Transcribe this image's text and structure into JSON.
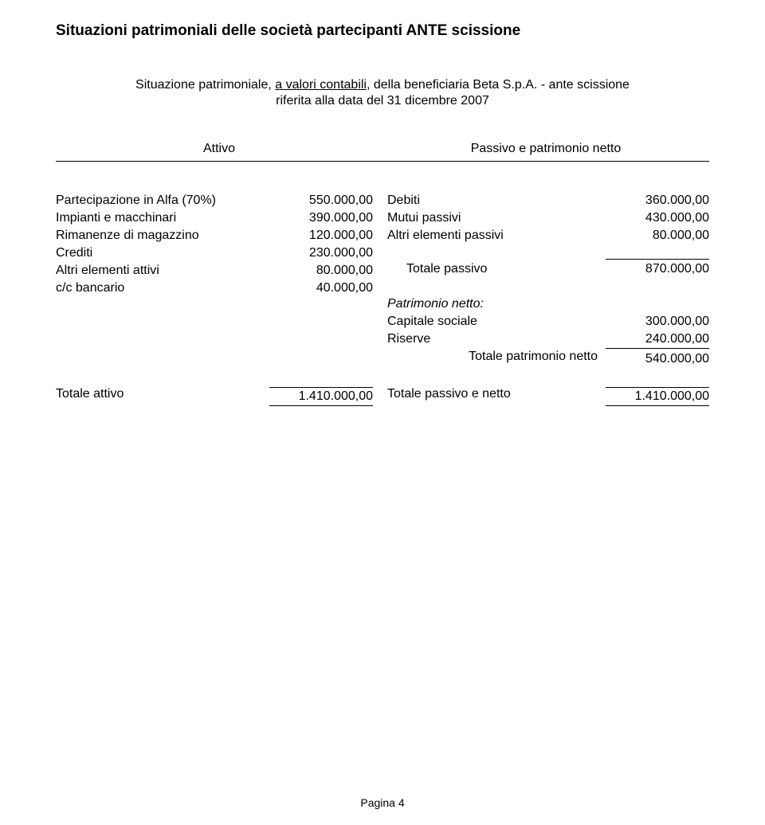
{
  "title": "Situazioni patrimoniali delle società partecipanti ANTE scissione",
  "subtitle_prefix": "Situazione patrimoniale, ",
  "subtitle_underlined": "a valori contabili",
  "subtitle_suffix": ", della beneficiaria Beta S.p.A. - ante scissione",
  "subtitle2": "riferita alla data del 31 dicembre 2007",
  "header_left": "Attivo",
  "header_right": "Passivo e patrimonio netto",
  "attivo": [
    {
      "label": "Partecipazione in Alfa (70%)",
      "value": "550.000,00"
    },
    {
      "label": "Impianti e macchinari",
      "value": "390.000,00"
    },
    {
      "label": "Rimanenze di magazzino",
      "value": "120.000,00"
    },
    {
      "label": "Crediti",
      "value": "230.000,00"
    },
    {
      "label": "Altri elementi attivi",
      "value": "80.000,00"
    },
    {
      "label": "c/c bancario",
      "value": "40.000,00"
    }
  ],
  "passivo": [
    {
      "label": "Debiti",
      "value": "360.000,00"
    },
    {
      "label": "Mutui passivi",
      "value": "430.000,00"
    },
    {
      "label": "Altri elementi passivi",
      "value": "80.000,00"
    }
  ],
  "totale_passivo": {
    "label": "Totale passivo",
    "value": "870.000,00"
  },
  "patrimonio_heading": "Patrimonio netto:",
  "patrimonio": [
    {
      "label": "Capitale sociale",
      "value": "300.000,00"
    },
    {
      "label": "Riserve",
      "value": "240.000,00"
    }
  ],
  "totale_patrimonio": {
    "label": "Totale patrimonio netto",
    "value": "540.000,00"
  },
  "totale_attivo": {
    "label": "Totale attivo",
    "value": "1.410.000,00"
  },
  "totale_passivo_netto": {
    "label": "Totale passivo e netto",
    "value": "1.410.000,00"
  },
  "page_number": "Pagina 4",
  "colors": {
    "text": "#000000",
    "background": "#ffffff",
    "border": "#000000"
  },
  "typography": {
    "title_fontsize": 19,
    "body_fontsize": 16,
    "page_num_fontsize": 14,
    "font_family": "Arial"
  }
}
